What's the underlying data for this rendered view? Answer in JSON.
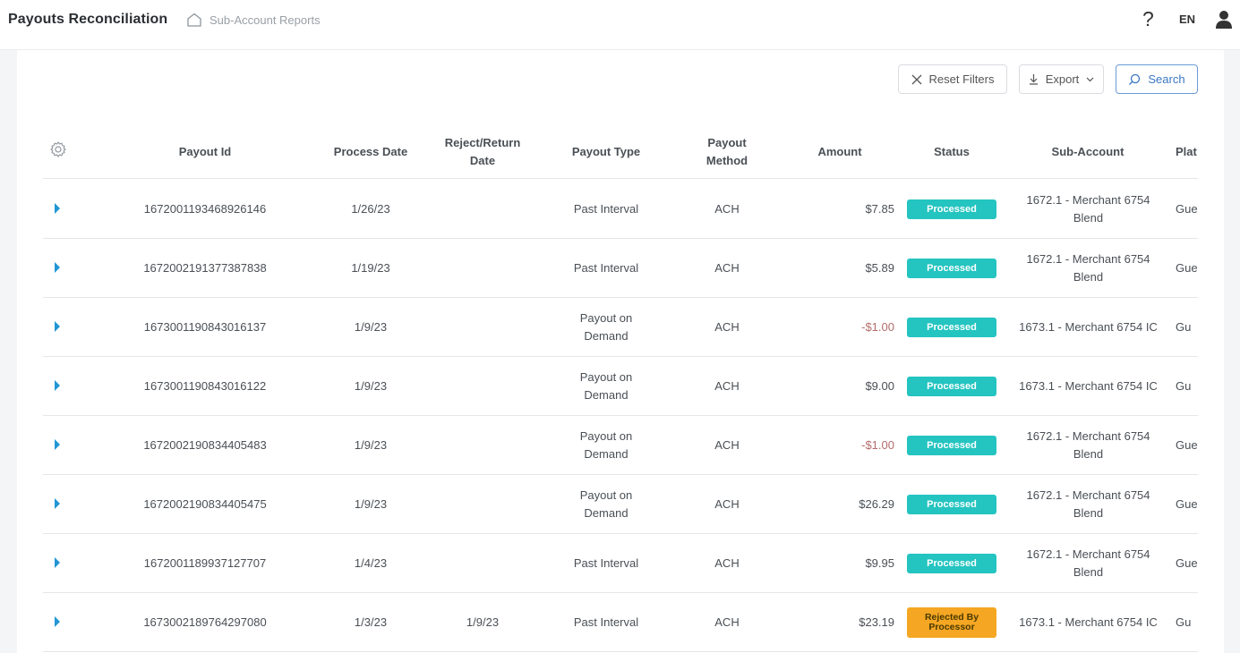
{
  "header": {
    "app_title": "Payouts Reconciliation",
    "breadcrumb": "Sub-Account Reports",
    "help": "?",
    "language": "EN"
  },
  "toolbar": {
    "reset_label": "Reset Filters",
    "export_label": "Export",
    "search_label": "Search"
  },
  "table": {
    "columns": [
      "Payout Id",
      "Process Date",
      "Reject/Return Date",
      "Payout Type",
      "Payout Method",
      "Amount",
      "Status",
      "Sub-Account",
      "Plat"
    ],
    "rows": [
      {
        "payout_id": "1672001193468926146",
        "process_date": "1/26/23",
        "reject_date": "",
        "payout_type": "Past Interval",
        "method": "ACH",
        "amount": "$7.85",
        "status": "Processed",
        "sub_account": "1672.1 - Merchant 6754 Blend",
        "platform": "Gue"
      },
      {
        "payout_id": "1672002191377387838",
        "process_date": "1/19/23",
        "reject_date": "",
        "payout_type": "Past Interval",
        "method": "ACH",
        "amount": "$5.89",
        "status": "Processed",
        "sub_account": "1672.1 - Merchant 6754 Blend",
        "platform": "Gue"
      },
      {
        "payout_id": "1673001190843016137",
        "process_date": "1/9/23",
        "reject_date": "",
        "payout_type": "Payout on Demand",
        "method": "ACH",
        "amount": "-$1.00",
        "status": "Processed",
        "sub_account": "1673.1 - Merchant 6754 IC",
        "platform": "Gu"
      },
      {
        "payout_id": "1673001190843016122",
        "process_date": "1/9/23",
        "reject_date": "",
        "payout_type": "Payout on Demand",
        "method": "ACH",
        "amount": "$9.00",
        "status": "Processed",
        "sub_account": "1673.1 - Merchant 6754 IC",
        "platform": "Gu"
      },
      {
        "payout_id": "1672002190834405483",
        "process_date": "1/9/23",
        "reject_date": "",
        "payout_type": "Payout on Demand",
        "method": "ACH",
        "amount": "-$1.00",
        "status": "Processed",
        "sub_account": "1672.1 - Merchant 6754 Blend",
        "platform": "Gue"
      },
      {
        "payout_id": "1672002190834405475",
        "process_date": "1/9/23",
        "reject_date": "",
        "payout_type": "Payout on Demand",
        "method": "ACH",
        "amount": "$26.29",
        "status": "Processed",
        "sub_account": "1672.1 - Merchant 6754 Blend",
        "platform": "Gue"
      },
      {
        "payout_id": "1672001189937127707",
        "process_date": "1/4/23",
        "reject_date": "",
        "payout_type": "Past Interval",
        "method": "ACH",
        "amount": "$9.95",
        "status": "Processed",
        "sub_account": "1672.1 - Merchant 6754 Blend",
        "platform": "Gue"
      },
      {
        "payout_id": "1673002189764297080",
        "process_date": "1/3/23",
        "reject_date": "1/9/23",
        "payout_type": "Past Interval",
        "method": "ACH",
        "amount": "$23.19",
        "status": "Rejected By Processor",
        "sub_account": "1673.1 - Merchant 6754 IC",
        "platform": "Gu"
      }
    ]
  },
  "colors": {
    "processed": "#24c4c0",
    "rejected": "#f5a623",
    "accent": "#2196d3",
    "negative_amount": "#b56b6b"
  },
  "icons": [
    "home-icon",
    "help-icon",
    "user-icon",
    "close-icon",
    "download-icon",
    "chevron-down-icon",
    "search-icon",
    "gear-icon",
    "expand-caret-icon",
    "arrow-down-icon",
    "arrow-up-icon"
  ]
}
